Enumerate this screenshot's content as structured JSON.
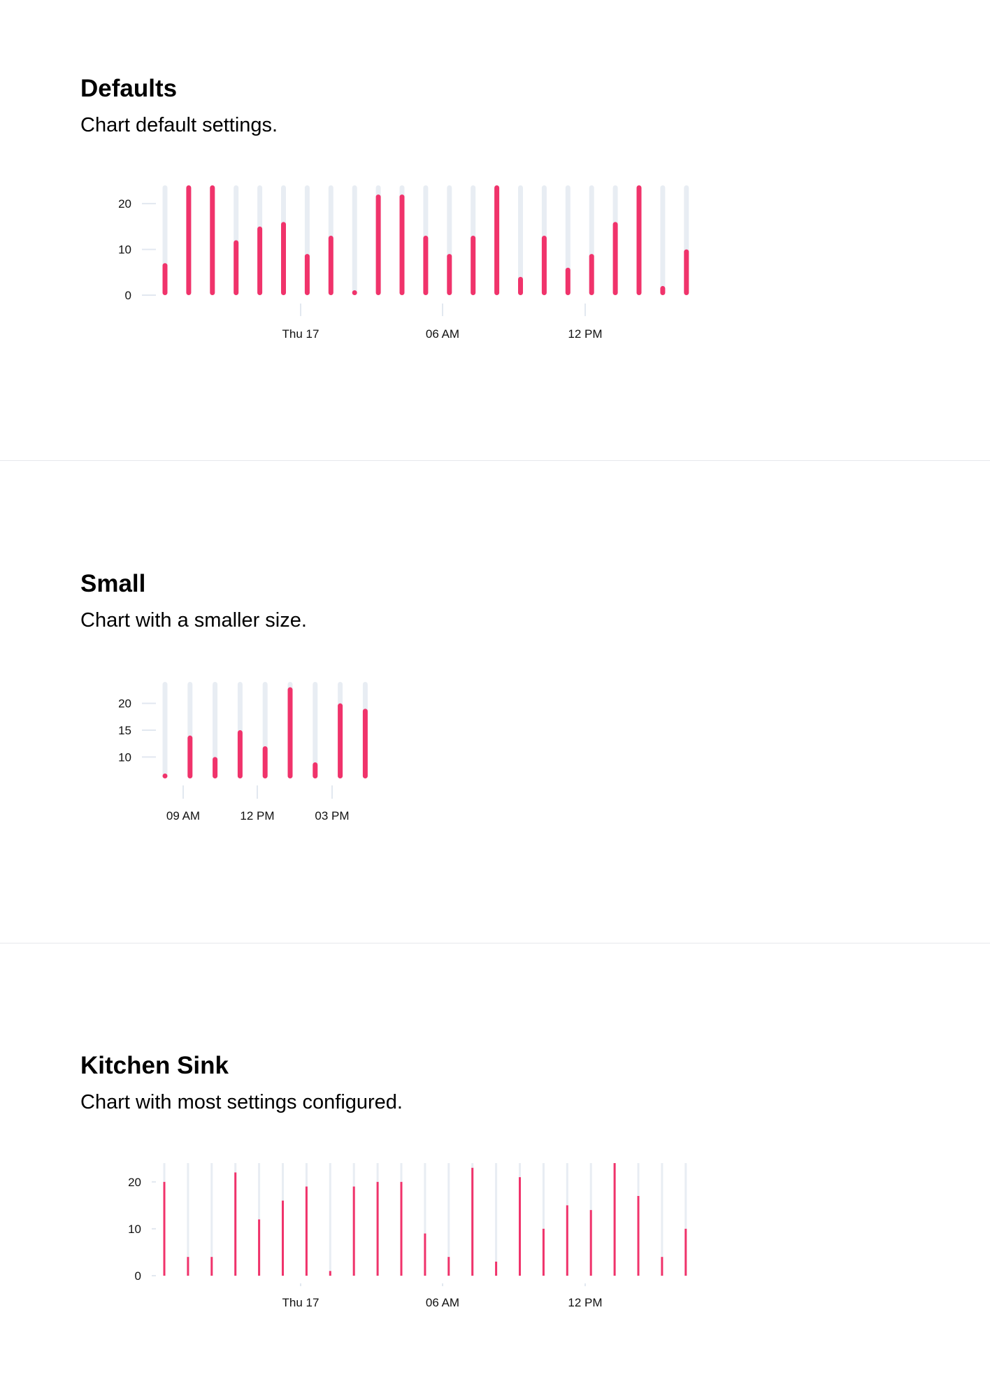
{
  "sections": [
    {
      "title": "Defaults",
      "subtitle": "Chart default settings."
    },
    {
      "title": "Small",
      "subtitle": "Chart with a smaller size."
    },
    {
      "title": "Kitchen Sink",
      "subtitle": "Chart with most settings configured."
    }
  ],
  "colors": {
    "bar": "#f0336b",
    "track": "#e8edf3",
    "axis": "#e2e8f0",
    "divider": "#e6e8ec"
  },
  "chart_data": [
    {
      "type": "bar",
      "x_tick_labels": [
        "Thu 17",
        "06 AM",
        "12 PM"
      ],
      "y_ticks": [
        0,
        10,
        20
      ],
      "ylim": [
        0,
        24
      ],
      "values": [
        7,
        24,
        24,
        12,
        15,
        16,
        9,
        13,
        1,
        22,
        22,
        13,
        9,
        13,
        24,
        4,
        13,
        6,
        9,
        16,
        24,
        2,
        10
      ],
      "grid": false,
      "legend": "none"
    },
    {
      "type": "bar",
      "x_tick_labels": [
        "09 AM",
        "12 PM",
        "03 PM"
      ],
      "y_ticks": [
        10,
        15,
        20
      ],
      "ylim": [
        6,
        24
      ],
      "values": [
        6.5,
        14,
        10,
        15,
        12,
        23,
        9,
        20,
        19
      ],
      "grid": false,
      "legend": "none"
    },
    {
      "type": "bar",
      "x_tick_labels": [
        "Thu 17",
        "06 AM",
        "12 PM"
      ],
      "y_ticks": [
        0,
        10,
        20
      ],
      "ylim": [
        0,
        24
      ],
      "values": [
        20,
        4,
        4,
        22,
        12,
        16,
        19,
        1,
        19,
        20,
        20,
        9,
        4,
        23,
        3,
        21,
        10,
        15,
        14,
        24,
        17,
        4,
        10
      ],
      "grid": false,
      "legend": "none"
    }
  ]
}
